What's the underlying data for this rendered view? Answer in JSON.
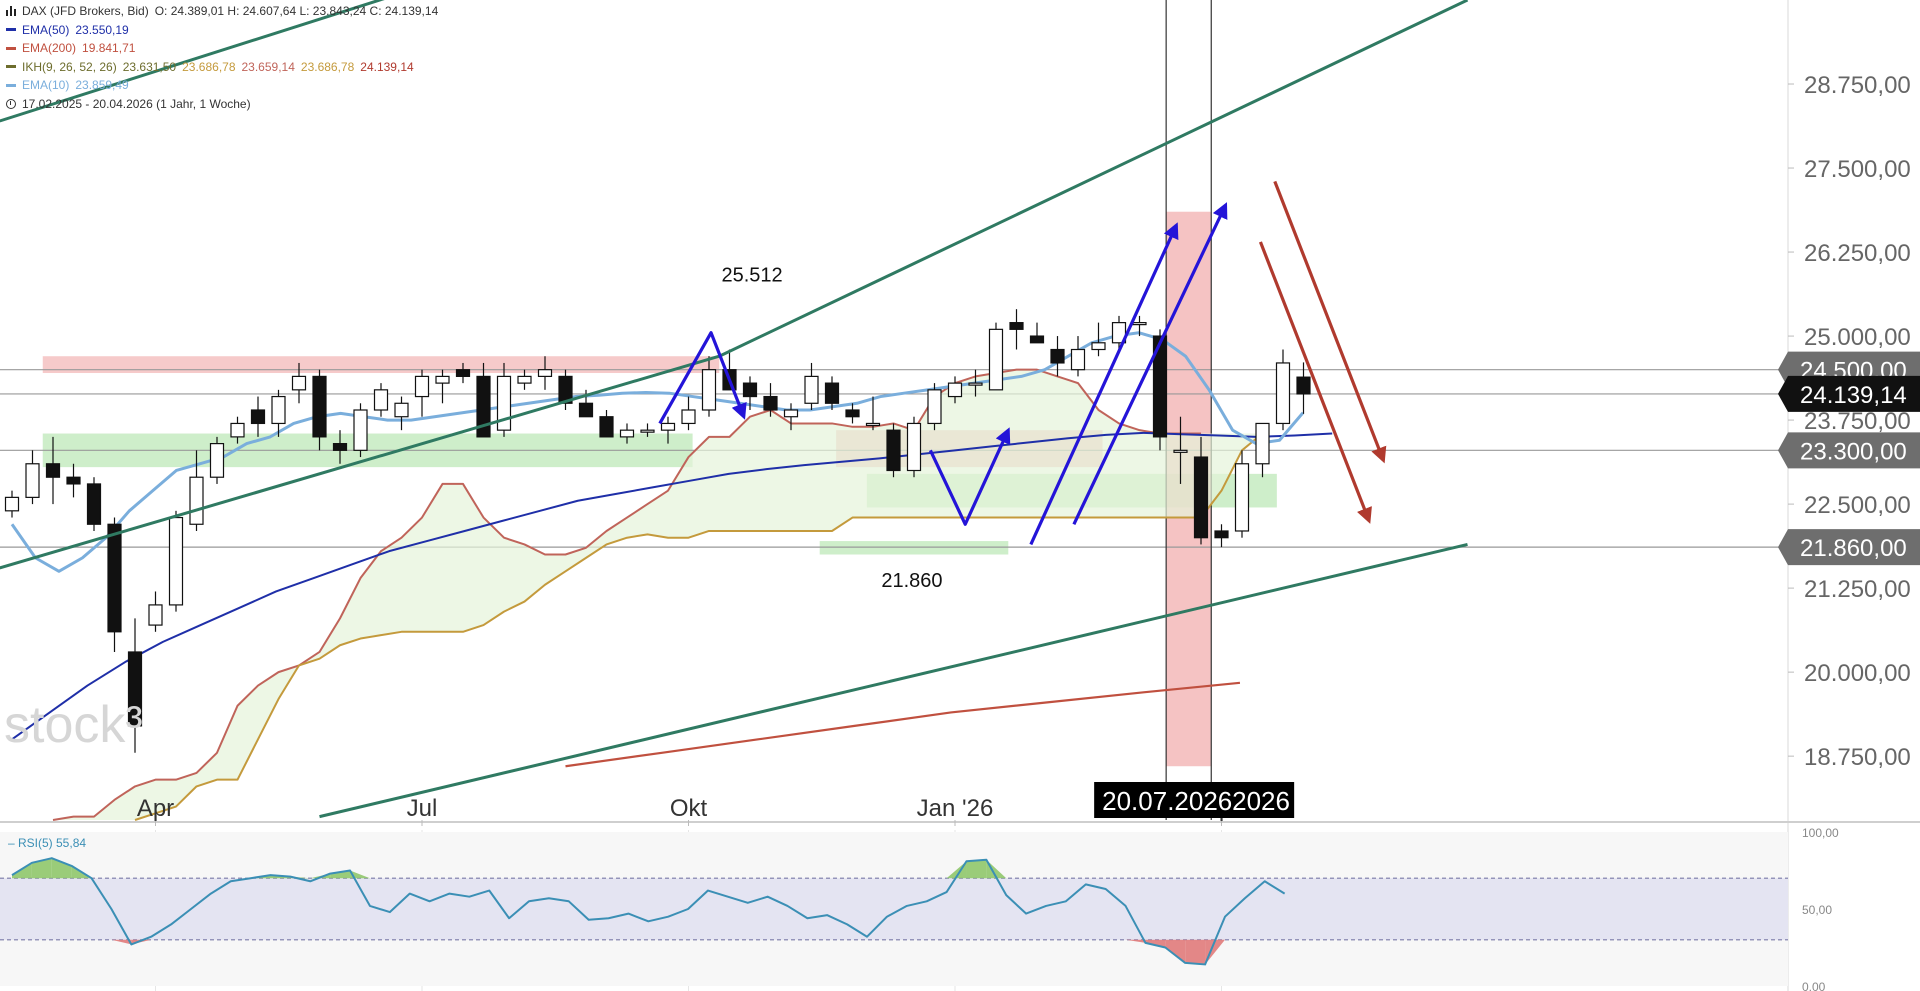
{
  "header": {
    "instrument": "DAX (JFD Brokers, Bid)",
    "ohlc": "O: 24.389,01  H: 24.607,64  L: 23.843,24  C: 24.139,14",
    "ema50_label": "EMA(50)",
    "ema50_value": "23.550,19",
    "ema200_label": "EMA(200)",
    "ema200_value": "19.841,71",
    "ikh_label": "IKH(9, 26, 52, 26)",
    "ikh_values": [
      "23.631,50",
      "23.686,78",
      "23.659,14",
      "23.686,78",
      "24.139,14"
    ],
    "ema10_label": "EMA(10)",
    "ema10_value": "23.859,49",
    "range": "17.02.2025 - 20.04.2026   (1 Jahr, 1 Woche)"
  },
  "watermark": "stock³",
  "colors": {
    "ema50": "#1f2fa8",
    "ema200": "#c0503f",
    "ema10": "#7aaedc",
    "ikh": "#6d6d2d",
    "ikh_a": "#c0645a",
    "ikh_b": "#c49a3c",
    "trend": "#2f7a62",
    "arrow_blue": "#2414d8",
    "arrow_red": "#b03a2e",
    "support_zone": "#9ddd95",
    "resistance_zone": "#ef9f9f"
  },
  "chart_data": {
    "type": "candlestick",
    "timeframe": "1 Woche",
    "ylim": [
      17800,
      30000
    ],
    "y_ticks": [
      "18.750,00",
      "20.000,00",
      "21.250,00",
      "22.500,00",
      "23.750,00",
      "25.000,00",
      "26.250,00",
      "27.500,00",
      "28.750,00"
    ],
    "x_tick_labels": [
      "Apr",
      "Jul",
      "Okt",
      "Jan '26",
      "Apr"
    ],
    "x_tick_weeks": [
      7,
      20,
      33,
      46,
      59
    ],
    "candles": [
      [
        22400,
        22700,
        22300,
        22600
      ],
      [
        22600,
        23300,
        22500,
        23100
      ],
      [
        23100,
        23500,
        22500,
        22900
      ],
      [
        22900,
        23100,
        22600,
        22800
      ],
      [
        22800,
        22900,
        22100,
        22200
      ],
      [
        22200,
        22300,
        20300,
        20600
      ],
      [
        20300,
        20800,
        18800,
        19200
      ],
      [
        20700,
        21200,
        20600,
        21000
      ],
      [
        21000,
        22400,
        20900,
        22300
      ],
      [
        22200,
        23300,
        22100,
        22900
      ],
      [
        22900,
        23500,
        22800,
        23400
      ],
      [
        23500,
        23800,
        23400,
        23700
      ],
      [
        23900,
        24100,
        23500,
        23700
      ],
      [
        23700,
        24200,
        23500,
        24100
      ],
      [
        24200,
        24600,
        24000,
        24400
      ],
      [
        24400,
        24500,
        23300,
        23500
      ],
      [
        23400,
        23600,
        23100,
        23300
      ],
      [
        23300,
        24000,
        23200,
        23900
      ],
      [
        23900,
        24300,
        23800,
        24200
      ],
      [
        23800,
        24100,
        23600,
        24000
      ],
      [
        24100,
        24500,
        23800,
        24400
      ],
      [
        24300,
        24500,
        24000,
        24400
      ],
      [
        24500,
        24600,
        24300,
        24400
      ],
      [
        24400,
        24600,
        23500,
        23500
      ],
      [
        23600,
        24600,
        23500,
        24400
      ],
      [
        24300,
        24500,
        24200,
        24400
      ],
      [
        24400,
        24700,
        24200,
        24500
      ],
      [
        24400,
        24500,
        23900,
        24000
      ],
      [
        24000,
        24200,
        23800,
        23800
      ],
      [
        23800,
        23900,
        23500,
        23500
      ],
      [
        23500,
        23700,
        23400,
        23600
      ],
      [
        23600,
        23700,
        23500,
        23600
      ],
      [
        23600,
        23800,
        23400,
        23700
      ],
      [
        23700,
        24100,
        23600,
        23900
      ],
      [
        23900,
        24700,
        23800,
        24500
      ],
      [
        24500,
        24800,
        24200,
        24200
      ],
      [
        24300,
        24400,
        23900,
        24100
      ],
      [
        24100,
        24300,
        23800,
        23900
      ],
      [
        23800,
        24000,
        23600,
        23900
      ],
      [
        24000,
        24600,
        23900,
        24400
      ],
      [
        24300,
        24400,
        23900,
        24000
      ],
      [
        23900,
        24000,
        23700,
        23800
      ],
      [
        23700,
        24100,
        23600,
        23700
      ],
      [
        23600,
        23700,
        22900,
        23000
      ],
      [
        23000,
        23800,
        22900,
        23700
      ],
      [
        23700,
        24300,
        23600,
        24200
      ],
      [
        24100,
        24400,
        24000,
        24300
      ],
      [
        24300,
        24500,
        24100,
        24300
      ],
      [
        24200,
        25200,
        24200,
        25100
      ],
      [
        25200,
        25400,
        24800,
        25100
      ],
      [
        25000,
        25200,
        24900,
        24900
      ],
      [
        24800,
        25000,
        24400,
        24600
      ],
      [
        24500,
        25000,
        24400,
        24800
      ],
      [
        24800,
        25200,
        24700,
        24900
      ],
      [
        24900,
        25300,
        24800,
        25200
      ],
      [
        25200,
        25300,
        25000,
        25200
      ],
      [
        25000,
        25100,
        23300,
        23500
      ],
      [
        23300,
        23800,
        22800,
        23300
      ],
      [
        23200,
        23500,
        21900,
        22000
      ],
      [
        22100,
        22200,
        21860,
        22000
      ],
      [
        22100,
        23300,
        22000,
        23100
      ],
      [
        23100,
        23600,
        22900,
        23700
      ],
      [
        23700,
        24800,
        23600,
        24600
      ],
      [
        24389,
        24608,
        23843,
        24139
      ]
    ],
    "ema10": [
      22200,
      21700,
      21500,
      21700,
      22000,
      22400,
      22700,
      23000,
      23100,
      23200,
      23400,
      23500,
      23700,
      23800,
      23850,
      23800,
      23750,
      23750,
      23800,
      23850,
      23900,
      23950,
      24000,
      24050,
      24100,
      24120,
      24150,
      24160,
      24150,
      24100,
      24050,
      24000,
      23950,
      23900,
      23900,
      23950,
      24000,
      24100,
      24150,
      24200,
      24250,
      24300,
      24350,
      24400,
      24500,
      24700,
      24900,
      25000,
      25050,
      24950,
      24700,
      24200,
      23600,
      23400,
      23450,
      23859
    ],
    "ema10_start": 0,
    "ema50": [
      19000,
      19400,
      19800,
      20150,
      20450,
      20700,
      20950,
      21200,
      21400,
      21600,
      21800,
      21950,
      22100,
      22250,
      22400,
      22550,
      22650,
      22750,
      22850,
      22950,
      23020,
      23080,
      23130,
      23180,
      23240,
      23300,
      23360,
      23420,
      23480,
      23530,
      23560,
      23540,
      23520,
      23500,
      23520,
      23550
    ],
    "ema50_start": 0,
    "ema200": [
      18600,
      18800,
      19000,
      19200,
      19400,
      19550,
      19700,
      19841
    ],
    "ema200_start": 27,
    "ikh_a": [
      17800,
      17850,
      17850,
      18100,
      18300,
      18400,
      18400,
      18500,
      18800,
      19500,
      19800,
      20000,
      20100,
      20300,
      20800,
      21400,
      21800,
      22000,
      22300,
      22800,
      22800,
      22300,
      22000,
      21900,
      21750,
      21750,
      21850,
      22100,
      22300,
      22500,
      22700,
      23200,
      23500,
      23500,
      23800,
      23900,
      23700,
      23700,
      23700,
      23650,
      23650,
      23700,
      23600,
      24100,
      24300,
      24400,
      24450,
      24500,
      24500,
      24400,
      24300,
      23900,
      23700,
      23600,
      23550,
      23550,
      23550
    ],
    "ikh_a_start": 2,
    "ikh_b": [
      17800,
      17900,
      18000,
      18300,
      18400,
      18400,
      19000,
      19600,
      20100,
      20200,
      20400,
      20500,
      20550,
      20600,
      20600,
      20600,
      20600,
      20700,
      20900,
      21050,
      21300,
      21500,
      21700,
      21900,
      22000,
      22050,
      22000,
      22000,
      22100,
      22100,
      22100,
      22100,
      22100,
      22100,
      22100,
      22300,
      22300,
      22300,
      22300,
      22300,
      22300,
      22300,
      22300,
      22300,
      22300,
      22300,
      22300,
      22300,
      22300,
      22300,
      22300,
      22300,
      22300,
      22700,
      23300,
      23550
    ],
    "ikh_b_start": 6,
    "levels": [
      {
        "label": "24.500,00",
        "value": 24500
      },
      {
        "label": "24.139,14",
        "value": 24139
      },
      {
        "label": "23.300,00",
        "value": 23300
      },
      {
        "label": "21.860,00",
        "value": 21860
      }
    ],
    "annotations": [
      {
        "text": "25.512",
        "value": 25512,
        "week": 55
      },
      {
        "text": "21.860",
        "value": 21860,
        "week": 64
      }
    ],
    "date_label": "20.07.2026",
    "date_label_tail": "2026",
    "forecast_x_start_week": 64,
    "rsi": {
      "label": "RSI(5)",
      "value": "55,84",
      "ticks": [
        "100,00",
        "50,00",
        "0,00"
      ],
      "levels": [
        70,
        30
      ],
      "values": [
        72,
        80,
        83,
        78,
        70,
        50,
        27,
        32,
        40,
        50,
        60,
        68,
        70,
        72,
        71,
        68,
        73,
        75,
        52,
        48,
        60,
        55,
        60,
        58,
        62,
        44,
        55,
        57,
        55,
        43,
        44,
        47,
        42,
        45,
        50,
        62,
        58,
        54,
        58,
        52,
        44,
        46,
        40,
        32,
        45,
        52,
        55,
        61,
        81,
        82,
        59,
        47,
        52,
        55,
        66,
        63,
        52,
        28,
        25,
        15,
        14,
        45,
        57,
        68,
        60
      ],
      "ylim": [
        0,
        100
      ]
    }
  }
}
